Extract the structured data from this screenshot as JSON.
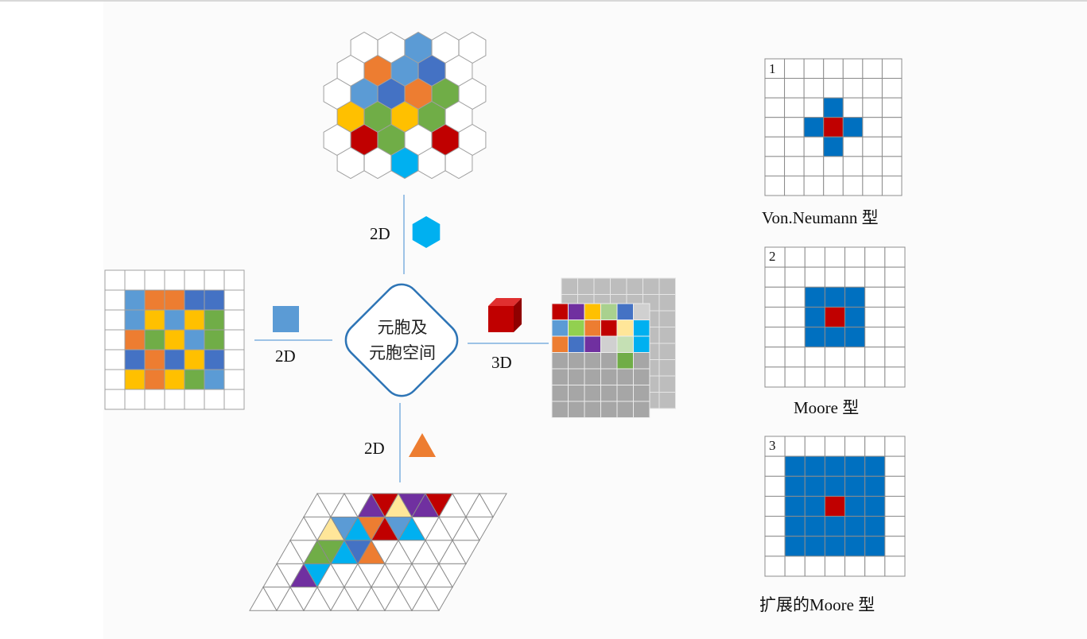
{
  "center": {
    "line1": "元胞及",
    "line2": "元胞空间"
  },
  "labels": {
    "top": "2D",
    "left": "2D",
    "right": "3D",
    "bottom": "2D"
  },
  "neighborhoods": [
    {
      "number": "1",
      "caption": "Von.Neumann 型"
    },
    {
      "number": "2",
      "caption": "Moore 型"
    },
    {
      "number": "3",
      "caption": "扩展的Moore 型"
    }
  ],
  "colors": {
    "blue": "#4472c4",
    "lightblue": "#5b9bd5",
    "orange": "#ed7d31",
    "green": "#70ad47",
    "yellow": "#ffc000",
    "red": "#c00000",
    "cyan": "#00b0f0",
    "purple": "#7030a0",
    "lightyellow": "#ffe699",
    "gray": "#a6a6a6",
    "neighborBlue": "#0070c0",
    "connector": "#9dc3e6"
  },
  "icons": [
    "hexagon-icon",
    "square-icon",
    "cube-icon",
    "triangle-icon"
  ]
}
